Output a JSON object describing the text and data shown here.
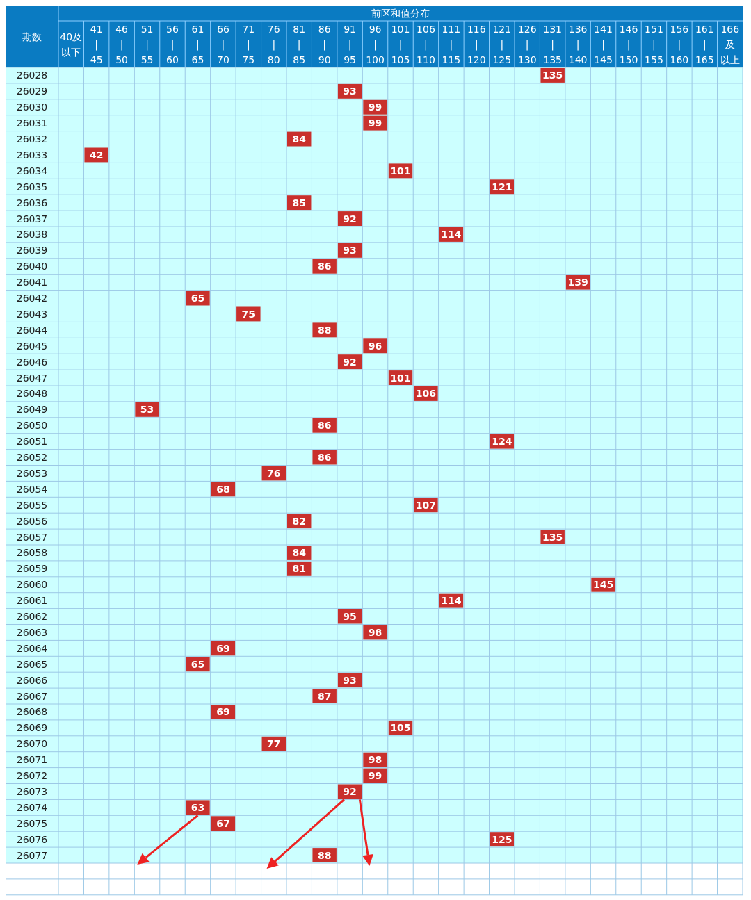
{
  "chart_data": {
    "type": "heatmap",
    "title": "前区和值分布",
    "ylabel": "期数",
    "color": "#c9302c",
    "data_labels": true,
    "categories": [
      "40及以下",
      "41 | 45",
      "46 | 50",
      "51 | 55",
      "56 | 60",
      "61 | 65",
      "66 | 70",
      "71 | 75",
      "76 | 80",
      "81 | 85",
      "86 | 90",
      "91 | 95",
      "96 | 100",
      "101 | 105",
      "106 | 110",
      "111 | 115",
      "116 | 120",
      "121 | 125",
      "126 | 130",
      "131 | 135",
      "136 | 140",
      "141 | 145",
      "146 | 150",
      "151 | 155",
      "156 | 160",
      "161 | 165",
      "166及以上"
    ],
    "y_categories": [
      "26028",
      "26029",
      "26030",
      "26031",
      "26032",
      "26033",
      "26034",
      "26035",
      "26036",
      "26037",
      "26038",
      "26039",
      "26040",
      "26041",
      "26042",
      "26043",
      "26044",
      "26045",
      "26046",
      "26047",
      "26048",
      "26049",
      "26050",
      "26051",
      "26052",
      "26053",
      "26054",
      "26055",
      "26056",
      "26057",
      "26058",
      "26059",
      "26060",
      "26061",
      "26062",
      "26063",
      "26064",
      "26065",
      "26066",
      "26067",
      "26068",
      "26069",
      "26070",
      "26071",
      "26072",
      "26073",
      "26074",
      "26075",
      "26076",
      "26077"
    ],
    "cells": [
      [
        null,
        null,
        null,
        null,
        null,
        null,
        null,
        null,
        null,
        null,
        null,
        null,
        null,
        null,
        null,
        null,
        null,
        null,
        null,
        135,
        null,
        null,
        null,
        null,
        null,
        null,
        null
      ],
      [
        null,
        null,
        null,
        null,
        null,
        null,
        null,
        null,
        null,
        null,
        null,
        93,
        null,
        null,
        null,
        null,
        null,
        null,
        null,
        null,
        null,
        null,
        null,
        null,
        null,
        null,
        null
      ],
      [
        null,
        null,
        null,
        null,
        null,
        null,
        null,
        null,
        null,
        null,
        null,
        null,
        99,
        null,
        null,
        null,
        null,
        null,
        null,
        null,
        null,
        null,
        null,
        null,
        null,
        null,
        null
      ],
      [
        null,
        null,
        null,
        null,
        null,
        null,
        null,
        null,
        null,
        null,
        null,
        null,
        99,
        null,
        null,
        null,
        null,
        null,
        null,
        null,
        null,
        null,
        null,
        null,
        null,
        null,
        null
      ],
      [
        null,
        null,
        null,
        null,
        null,
        null,
        null,
        null,
        null,
        84,
        null,
        null,
        null,
        null,
        null,
        null,
        null,
        null,
        null,
        null,
        null,
        null,
        null,
        null,
        null,
        null,
        null
      ],
      [
        null,
        42,
        null,
        null,
        null,
        null,
        null,
        null,
        null,
        null,
        null,
        null,
        null,
        null,
        null,
        null,
        null,
        null,
        null,
        null,
        null,
        null,
        null,
        null,
        null,
        null,
        null
      ],
      [
        null,
        null,
        null,
        null,
        null,
        null,
        null,
        null,
        null,
        null,
        null,
        null,
        null,
        101,
        null,
        null,
        null,
        null,
        null,
        null,
        null,
        null,
        null,
        null,
        null,
        null,
        null
      ],
      [
        null,
        null,
        null,
        null,
        null,
        null,
        null,
        null,
        null,
        null,
        null,
        null,
        null,
        null,
        null,
        null,
        null,
        121,
        null,
        null,
        null,
        null,
        null,
        null,
        null,
        null,
        null
      ],
      [
        null,
        null,
        null,
        null,
        null,
        null,
        null,
        null,
        null,
        85,
        null,
        null,
        null,
        null,
        null,
        null,
        null,
        null,
        null,
        null,
        null,
        null,
        null,
        null,
        null,
        null,
        null
      ],
      [
        null,
        null,
        null,
        null,
        null,
        null,
        null,
        null,
        null,
        null,
        null,
        92,
        null,
        null,
        null,
        null,
        null,
        null,
        null,
        null,
        null,
        null,
        null,
        null,
        null,
        null,
        null
      ],
      [
        null,
        null,
        null,
        null,
        null,
        null,
        null,
        null,
        null,
        null,
        null,
        null,
        null,
        null,
        null,
        114,
        null,
        null,
        null,
        null,
        null,
        null,
        null,
        null,
        null,
        null,
        null
      ],
      [
        null,
        null,
        null,
        null,
        null,
        null,
        null,
        null,
        null,
        null,
        null,
        93,
        null,
        null,
        null,
        null,
        null,
        null,
        null,
        null,
        null,
        null,
        null,
        null,
        null,
        null,
        null
      ],
      [
        null,
        null,
        null,
        null,
        null,
        null,
        null,
        null,
        null,
        null,
        86,
        null,
        null,
        null,
        null,
        null,
        null,
        null,
        null,
        null,
        null,
        null,
        null,
        null,
        null,
        null,
        null
      ],
      [
        null,
        null,
        null,
        null,
        null,
        null,
        null,
        null,
        null,
        null,
        null,
        null,
        null,
        null,
        null,
        null,
        null,
        null,
        null,
        null,
        139,
        null,
        null,
        null,
        null,
        null,
        null
      ],
      [
        null,
        null,
        null,
        null,
        null,
        65,
        null,
        null,
        null,
        null,
        null,
        null,
        null,
        null,
        null,
        null,
        null,
        null,
        null,
        null,
        null,
        null,
        null,
        null,
        null,
        null,
        null
      ],
      [
        null,
        null,
        null,
        null,
        null,
        null,
        null,
        75,
        null,
        null,
        null,
        null,
        null,
        null,
        null,
        null,
        null,
        null,
        null,
        null,
        null,
        null,
        null,
        null,
        null,
        null,
        null
      ],
      [
        null,
        null,
        null,
        null,
        null,
        null,
        null,
        null,
        null,
        null,
        88,
        null,
        null,
        null,
        null,
        null,
        null,
        null,
        null,
        null,
        null,
        null,
        null,
        null,
        null,
        null,
        null
      ],
      [
        null,
        null,
        null,
        null,
        null,
        null,
        null,
        null,
        null,
        null,
        null,
        null,
        96,
        null,
        null,
        null,
        null,
        null,
        null,
        null,
        null,
        null,
        null,
        null,
        null,
        null,
        null
      ],
      [
        null,
        null,
        null,
        null,
        null,
        null,
        null,
        null,
        null,
        null,
        null,
        92,
        null,
        null,
        null,
        null,
        null,
        null,
        null,
        null,
        null,
        null,
        null,
        null,
        null,
        null,
        null
      ],
      [
        null,
        null,
        null,
        null,
        null,
        null,
        null,
        null,
        null,
        null,
        null,
        null,
        null,
        101,
        null,
        null,
        null,
        null,
        null,
        null,
        null,
        null,
        null,
        null,
        null,
        null,
        null
      ],
      [
        null,
        null,
        null,
        null,
        null,
        null,
        null,
        null,
        null,
        null,
        null,
        null,
        null,
        null,
        106,
        null,
        null,
        null,
        null,
        null,
        null,
        null,
        null,
        null,
        null,
        null,
        null
      ],
      [
        null,
        null,
        null,
        53,
        null,
        null,
        null,
        null,
        null,
        null,
        null,
        null,
        null,
        null,
        null,
        null,
        null,
        null,
        null,
        null,
        null,
        null,
        null,
        null,
        null,
        null,
        null
      ],
      [
        null,
        null,
        null,
        null,
        null,
        null,
        null,
        null,
        null,
        null,
        86,
        null,
        null,
        null,
        null,
        null,
        null,
        null,
        null,
        null,
        null,
        null,
        null,
        null,
        null,
        null,
        null
      ],
      [
        null,
        null,
        null,
        null,
        null,
        null,
        null,
        null,
        null,
        null,
        null,
        null,
        null,
        null,
        null,
        null,
        null,
        124,
        null,
        null,
        null,
        null,
        null,
        null,
        null,
        null,
        null
      ],
      [
        null,
        null,
        null,
        null,
        null,
        null,
        null,
        null,
        null,
        null,
        86,
        null,
        null,
        null,
        null,
        null,
        null,
        null,
        null,
        null,
        null,
        null,
        null,
        null,
        null,
        null,
        null
      ],
      [
        null,
        null,
        null,
        null,
        null,
        null,
        null,
        null,
        76,
        null,
        null,
        null,
        null,
        null,
        null,
        null,
        null,
        null,
        null,
        null,
        null,
        null,
        null,
        null,
        null,
        null,
        null
      ],
      [
        null,
        null,
        null,
        null,
        null,
        null,
        68,
        null,
        null,
        null,
        null,
        null,
        null,
        null,
        null,
        null,
        null,
        null,
        null,
        null,
        null,
        null,
        null,
        null,
        null,
        null,
        null
      ],
      [
        null,
        null,
        null,
        null,
        null,
        null,
        null,
        null,
        null,
        null,
        null,
        null,
        null,
        null,
        107,
        null,
        null,
        null,
        null,
        null,
        null,
        null,
        null,
        null,
        null,
        null,
        null
      ],
      [
        null,
        null,
        null,
        null,
        null,
        null,
        null,
        null,
        null,
        82,
        null,
        null,
        null,
        null,
        null,
        null,
        null,
        null,
        null,
        null,
        null,
        null,
        null,
        null,
        null,
        null,
        null
      ],
      [
        null,
        null,
        null,
        null,
        null,
        null,
        null,
        null,
        null,
        null,
        null,
        null,
        null,
        null,
        null,
        null,
        null,
        null,
        null,
        135,
        null,
        null,
        null,
        null,
        null,
        null,
        null
      ],
      [
        null,
        null,
        null,
        null,
        null,
        null,
        null,
        null,
        null,
        84,
        null,
        null,
        null,
        null,
        null,
        null,
        null,
        null,
        null,
        null,
        null,
        null,
        null,
        null,
        null,
        null,
        null
      ],
      [
        null,
        null,
        null,
        null,
        null,
        null,
        null,
        null,
        null,
        81,
        null,
        null,
        null,
        null,
        null,
        null,
        null,
        null,
        null,
        null,
        null,
        null,
        null,
        null,
        null,
        null,
        null
      ],
      [
        null,
        null,
        null,
        null,
        null,
        null,
        null,
        null,
        null,
        null,
        null,
        null,
        null,
        null,
        null,
        null,
        null,
        null,
        null,
        null,
        null,
        145,
        null,
        null,
        null,
        null,
        null
      ],
      [
        null,
        null,
        null,
        null,
        null,
        null,
        null,
        null,
        null,
        null,
        null,
        null,
        null,
        null,
        null,
        114,
        null,
        null,
        null,
        null,
        null,
        null,
        null,
        null,
        null,
        null,
        null
      ],
      [
        null,
        null,
        null,
        null,
        null,
        null,
        null,
        null,
        null,
        null,
        null,
        95,
        null,
        null,
        null,
        null,
        null,
        null,
        null,
        null,
        null,
        null,
        null,
        null,
        null,
        null,
        null
      ],
      [
        null,
        null,
        null,
        null,
        null,
        null,
        null,
        null,
        null,
        null,
        null,
        null,
        98,
        null,
        null,
        null,
        null,
        null,
        null,
        null,
        null,
        null,
        null,
        null,
        null,
        null,
        null
      ],
      [
        null,
        null,
        null,
        null,
        null,
        null,
        69,
        null,
        null,
        null,
        null,
        null,
        null,
        null,
        null,
        null,
        null,
        null,
        null,
        null,
        null,
        null,
        null,
        null,
        null,
        null,
        null
      ],
      [
        null,
        null,
        null,
        null,
        null,
        65,
        null,
        null,
        null,
        null,
        null,
        null,
        null,
        null,
        null,
        null,
        null,
        null,
        null,
        null,
        null,
        null,
        null,
        null,
        null,
        null,
        null
      ],
      [
        null,
        null,
        null,
        null,
        null,
        null,
        null,
        null,
        null,
        null,
        null,
        93,
        null,
        null,
        null,
        null,
        null,
        null,
        null,
        null,
        null,
        null,
        null,
        null,
        null,
        null,
        null
      ],
      [
        null,
        null,
        null,
        null,
        null,
        null,
        null,
        null,
        null,
        null,
        87,
        null,
        null,
        null,
        null,
        null,
        null,
        null,
        null,
        null,
        null,
        null,
        null,
        null,
        null,
        null,
        null
      ],
      [
        null,
        null,
        null,
        null,
        null,
        null,
        69,
        null,
        null,
        null,
        null,
        null,
        null,
        null,
        null,
        null,
        null,
        null,
        null,
        null,
        null,
        null,
        null,
        null,
        null,
        null,
        null
      ],
      [
        null,
        null,
        null,
        null,
        null,
        null,
        null,
        null,
        null,
        null,
        null,
        null,
        null,
        105,
        null,
        null,
        null,
        null,
        null,
        null,
        null,
        null,
        null,
        null,
        null,
        null,
        null
      ],
      [
        null,
        null,
        null,
        null,
        null,
        null,
        null,
        null,
        77,
        null,
        null,
        null,
        null,
        null,
        null,
        null,
        null,
        null,
        null,
        null,
        null,
        null,
        null,
        null,
        null,
        null,
        null
      ],
      [
        null,
        null,
        null,
        null,
        null,
        null,
        null,
        null,
        null,
        null,
        null,
        null,
        98,
        null,
        null,
        null,
        null,
        null,
        null,
        null,
        null,
        null,
        null,
        null,
        null,
        null,
        null
      ],
      [
        null,
        null,
        null,
        null,
        null,
        null,
        null,
        null,
        null,
        null,
        null,
        null,
        99,
        null,
        null,
        null,
        null,
        null,
        null,
        null,
        null,
        null,
        null,
        null,
        null,
        null,
        null
      ],
      [
        null,
        null,
        null,
        null,
        null,
        null,
        null,
        null,
        null,
        null,
        null,
        92,
        null,
        null,
        null,
        null,
        null,
        null,
        null,
        null,
        null,
        null,
        null,
        null,
        null,
        null,
        null
      ],
      [
        null,
        null,
        null,
        null,
        null,
        63,
        null,
        null,
        null,
        null,
        null,
        null,
        null,
        null,
        null,
        null,
        null,
        null,
        null,
        null,
        null,
        null,
        null,
        null,
        null,
        null,
        null
      ],
      [
        null,
        null,
        null,
        null,
        null,
        null,
        67,
        null,
        null,
        null,
        null,
        null,
        null,
        null,
        null,
        null,
        null,
        null,
        null,
        null,
        null,
        null,
        null,
        null,
        null,
        null,
        null
      ],
      [
        null,
        null,
        null,
        null,
        null,
        null,
        null,
        null,
        null,
        null,
        null,
        null,
        null,
        null,
        null,
        null,
        null,
        125,
        null,
        null,
        null,
        null,
        null,
        null,
        null,
        null,
        null
      ],
      [
        null,
        null,
        null,
        null,
        null,
        null,
        null,
        null,
        null,
        null,
        88,
        null,
        null,
        null,
        null,
        null,
        null,
        null,
        null,
        null,
        null,
        null,
        null,
        null,
        null,
        null,
        null
      ]
    ]
  }
}
